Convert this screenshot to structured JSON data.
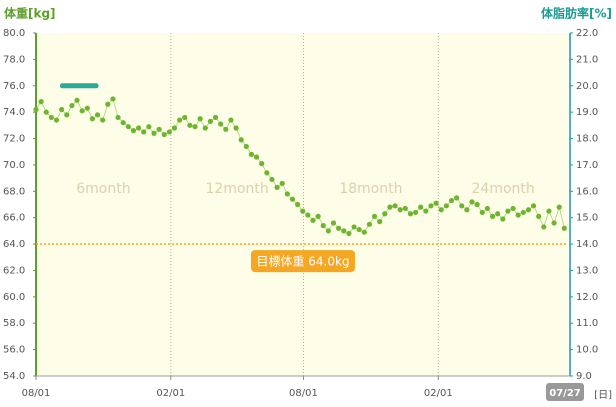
{
  "chart_data": {
    "type": "scatter",
    "y_label": "体重[kg]",
    "y2_label": "体脂肪率[%]",
    "x_unit": "[日]",
    "xlim": [
      0,
      726
    ],
    "xticks": [
      {
        "value": 0,
        "label": "08/01"
      },
      {
        "value": 184,
        "label": "02/01"
      },
      {
        "value": 365,
        "label": "08/01"
      },
      {
        "value": 549,
        "label": "02/01"
      }
    ],
    "x_end": {
      "value": 726,
      "label": "07/27"
    },
    "ylim": [
      54,
      80
    ],
    "yticks": [
      {
        "value": 54,
        "label": "54.0"
      },
      {
        "value": 56,
        "label": "56.0"
      },
      {
        "value": 58,
        "label": "58.0"
      },
      {
        "value": 60,
        "label": "60.0"
      },
      {
        "value": 62,
        "label": "62.0"
      },
      {
        "value": 64,
        "label": "64.0"
      },
      {
        "value": 66,
        "label": "66.0"
      },
      {
        "value": 68,
        "label": "68.0"
      },
      {
        "value": 70,
        "label": "70.0"
      },
      {
        "value": 72,
        "label": "72.0"
      },
      {
        "value": 74,
        "label": "74.0"
      },
      {
        "value": 76,
        "label": "76.0"
      },
      {
        "value": 78,
        "label": "78.0"
      },
      {
        "value": 80,
        "label": "80.0"
      }
    ],
    "y2lim": [
      9,
      22
    ],
    "y2ticks": [
      {
        "value": 9,
        "label": "9.0"
      },
      {
        "value": 10,
        "label": "10.0"
      },
      {
        "value": 11,
        "label": "11.0"
      },
      {
        "value": 12,
        "label": "12.0"
      },
      {
        "value": 13,
        "label": "13.0"
      },
      {
        "value": 14,
        "label": "14.0"
      },
      {
        "value": 15,
        "label": "15.0"
      },
      {
        "value": 16,
        "label": "16.0"
      },
      {
        "value": 17,
        "label": "17.0"
      },
      {
        "value": 18,
        "label": "18.0"
      },
      {
        "value": 19,
        "label": "19.0"
      },
      {
        "value": 20,
        "label": "20.0"
      },
      {
        "value": 21,
        "label": "21.0"
      },
      {
        "value": 22,
        "label": "22.0"
      }
    ],
    "period_labels": [
      "6month",
      "12month",
      "18month",
      "24month"
    ],
    "target": {
      "value": 64.0,
      "label": "目標体重 64.0kg",
      "color": "#f5a623"
    },
    "series": [
      {
        "color": "#6cb52d",
        "x": [
          0,
          7,
          14,
          21,
          28,
          35,
          42,
          49,
          56,
          63,
          70,
          77,
          84,
          91,
          98,
          105,
          112,
          119,
          126,
          133,
          140,
          147,
          154,
          161,
          168,
          175,
          182,
          189,
          196,
          203,
          210,
          217,
          224,
          231,
          238,
          245,
          252,
          259,
          266,
          273,
          280,
          287,
          294,
          301,
          308,
          315,
          322,
          329,
          336,
          343,
          350,
          357,
          364,
          371,
          378,
          385,
          392,
          399,
          406,
          413,
          420,
          427,
          434,
          441,
          448,
          455,
          462,
          469,
          476,
          483,
          490,
          497,
          504,
          511,
          518,
          525,
          532,
          539,
          546,
          553,
          560,
          567,
          574,
          581,
          588,
          595,
          602,
          609,
          616,
          623,
          630,
          637,
          644,
          651,
          658,
          665,
          672,
          679,
          686,
          693,
          700,
          707,
          714,
          721
        ],
        "values": [
          74.2,
          74.8,
          74.0,
          73.6,
          73.4,
          74.2,
          73.8,
          74.5,
          74.9,
          74.1,
          74.3,
          73.5,
          73.8,
          73.4,
          74.6,
          75.0,
          73.6,
          73.2,
          72.9,
          72.6,
          72.8,
          72.5,
          72.9,
          72.4,
          72.7,
          72.3,
          72.5,
          72.8,
          73.4,
          73.6,
          73.0,
          72.9,
          73.5,
          72.8,
          73.3,
          73.6,
          73.1,
          72.7,
          73.4,
          72.8,
          71.9,
          71.4,
          70.8,
          70.6,
          70.1,
          69.4,
          68.9,
          68.3,
          68.6,
          67.8,
          67.4,
          67.0,
          66.5,
          66.2,
          65.8,
          66.1,
          65.4,
          65.0,
          65.6,
          65.2,
          65.0,
          64.8,
          65.3,
          65.1,
          64.9,
          65.5,
          66.1,
          65.7,
          66.3,
          66.8,
          66.9,
          66.6,
          66.7,
          66.3,
          66.4,
          66.8,
          66.5,
          66.9,
          67.1,
          66.6,
          66.9,
          67.3,
          67.5,
          66.9,
          66.6,
          67.2,
          67.0,
          66.4,
          66.7,
          66.1,
          66.3,
          65.9,
          66.5,
          66.7,
          66.2,
          66.4,
          66.6,
          66.9,
          66.1,
          65.3,
          66.5,
          65.6,
          66.8,
          65.2
        ]
      },
      {
        "color": "#2aa89a",
        "axis": "y2",
        "x": [
          36,
          42,
          48,
          54,
          60,
          66,
          72,
          78,
          82
        ],
        "values": [
          20.0,
          20.0,
          20.0,
          20.0,
          20.0,
          20.0,
          20.0,
          20.0,
          20.0
        ]
      }
    ]
  }
}
